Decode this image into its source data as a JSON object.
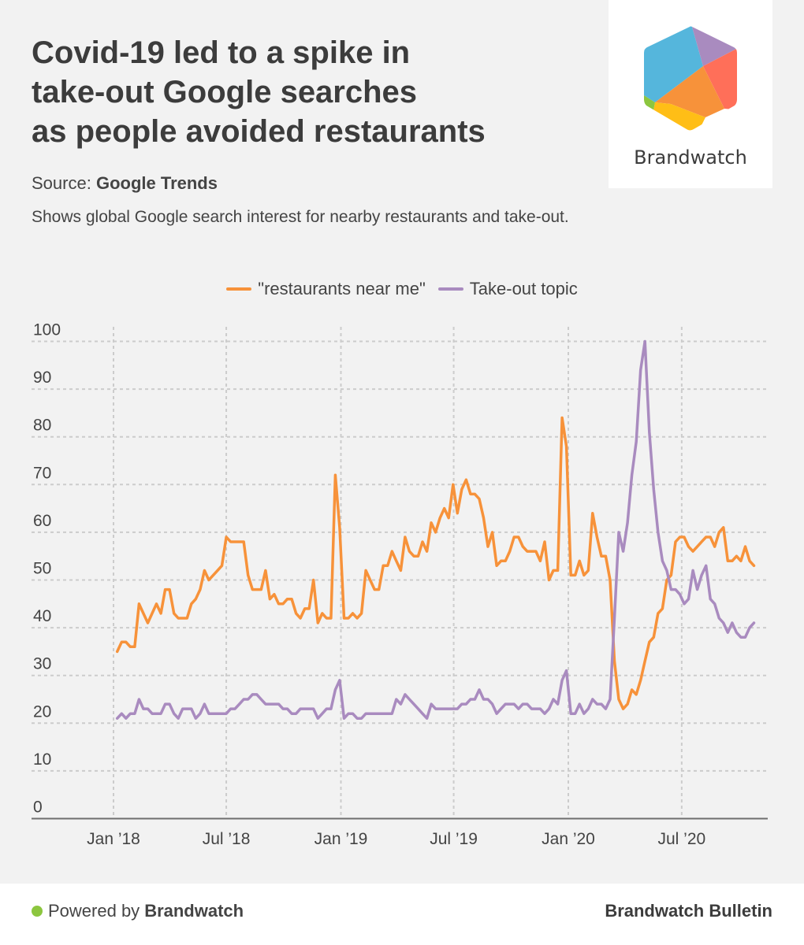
{
  "header": {
    "title_lines": [
      "Covid-19 led to a spike in",
      "take-out Google searches",
      "as people avoided restaurants"
    ],
    "source_label": "Source:",
    "source_name": "Google Trends",
    "description": "Shows global Google search interest for nearby restaurants and take-out."
  },
  "logo": {
    "name": "Brandwatch",
    "colors": [
      "#55b6dc",
      "#a98bbf",
      "#ff6f59",
      "#f7923a",
      "#ffbe16",
      "#8cc63f"
    ]
  },
  "footer": {
    "powered_prefix": "Powered by",
    "powered_brand": "Brandwatch",
    "publication": "Brandwatch Bulletin",
    "dot_color": "#8cc63f"
  },
  "chart_data": {
    "type": "line",
    "title": "Covid-19 led to a spike in take-out Google searches as people avoided restaurants",
    "xlabel": "",
    "ylabel": "",
    "x_start": "2018-01-07",
    "x_interval": "weekly",
    "x_ticks": [
      {
        "label": "Jan ’18",
        "date": "2018-01-01"
      },
      {
        "label": "Jul ’18",
        "date": "2018-07-01"
      },
      {
        "label": "Jan ’19",
        "date": "2019-01-01"
      },
      {
        "label": "Jul ’19",
        "date": "2019-07-01"
      },
      {
        "label": "Jan ’20",
        "date": "2020-01-01"
      },
      {
        "label": "Jul ’20",
        "date": "2020-07-01"
      }
    ],
    "y_ticks": [
      0,
      10,
      20,
      30,
      40,
      50,
      60,
      70,
      80,
      90,
      100
    ],
    "ylim": [
      0,
      100
    ],
    "grid": true,
    "legend_position": "top-center",
    "series": [
      {
        "name": "\"restaurants near me\"",
        "color": "#f7923a",
        "values": [
          35,
          37,
          37,
          36,
          36,
          45,
          43,
          41,
          43,
          45,
          43,
          48,
          48,
          43,
          42,
          42,
          42,
          45,
          46,
          48,
          52,
          50,
          51,
          52,
          53,
          59,
          58,
          58,
          58,
          58,
          51,
          48,
          48,
          48,
          52,
          46,
          47,
          45,
          45,
          46,
          46,
          43,
          42,
          44,
          44,
          50,
          41,
          43,
          42,
          42,
          72,
          61,
          42,
          42,
          43,
          42,
          43,
          52,
          50,
          48,
          48,
          53,
          53,
          56,
          54,
          52,
          59,
          56,
          55,
          55,
          58,
          56,
          62,
          60,
          63,
          65,
          63,
          70,
          64,
          69,
          71,
          68,
          68,
          67,
          63,
          57,
          60,
          53,
          54,
          54,
          56,
          59,
          59,
          57,
          56,
          56,
          56,
          54,
          58,
          50,
          52,
          52,
          84,
          78,
          51,
          51,
          54,
          51,
          52,
          64,
          59,
          55,
          55,
          50,
          33,
          25,
          23,
          24,
          27,
          26,
          29,
          33,
          37,
          38,
          43,
          44,
          50,
          51,
          58,
          59,
          59,
          57,
          56,
          57,
          58,
          59,
          59,
          57,
          60,
          61,
          54,
          54,
          55,
          54,
          57,
          54,
          53
        ]
      },
      {
        "name": "Take-out topic",
        "color": "#a98bbf",
        "values": [
          21,
          22,
          21,
          22,
          22,
          25,
          23,
          23,
          22,
          22,
          22,
          24,
          24,
          22,
          21,
          23,
          23,
          23,
          21,
          22,
          24,
          22,
          22,
          22,
          22,
          22,
          23,
          23,
          24,
          25,
          25,
          26,
          26,
          25,
          24,
          24,
          24,
          24,
          23,
          23,
          22,
          22,
          23,
          23,
          23,
          23,
          21,
          22,
          23,
          23,
          27,
          29,
          21,
          22,
          22,
          21,
          21,
          22,
          22,
          22,
          22,
          22,
          22,
          22,
          25,
          24,
          26,
          25,
          24,
          23,
          22,
          21,
          24,
          23,
          23,
          23,
          23,
          23,
          23,
          24,
          24,
          25,
          25,
          27,
          25,
          25,
          24,
          22,
          23,
          24,
          24,
          24,
          23,
          24,
          24,
          23,
          23,
          23,
          22,
          23,
          25,
          24,
          29,
          31,
          22,
          22,
          24,
          22,
          23,
          25,
          24,
          24,
          23,
          25,
          42,
          60,
          56,
          62,
          72,
          79,
          94,
          100,
          81,
          69,
          60,
          54,
          52,
          48,
          48,
          47,
          45,
          46,
          52,
          48,
          51,
          53,
          46,
          45,
          42,
          41,
          39,
          41,
          39,
          38,
          38,
          40,
          41
        ]
      }
    ]
  }
}
